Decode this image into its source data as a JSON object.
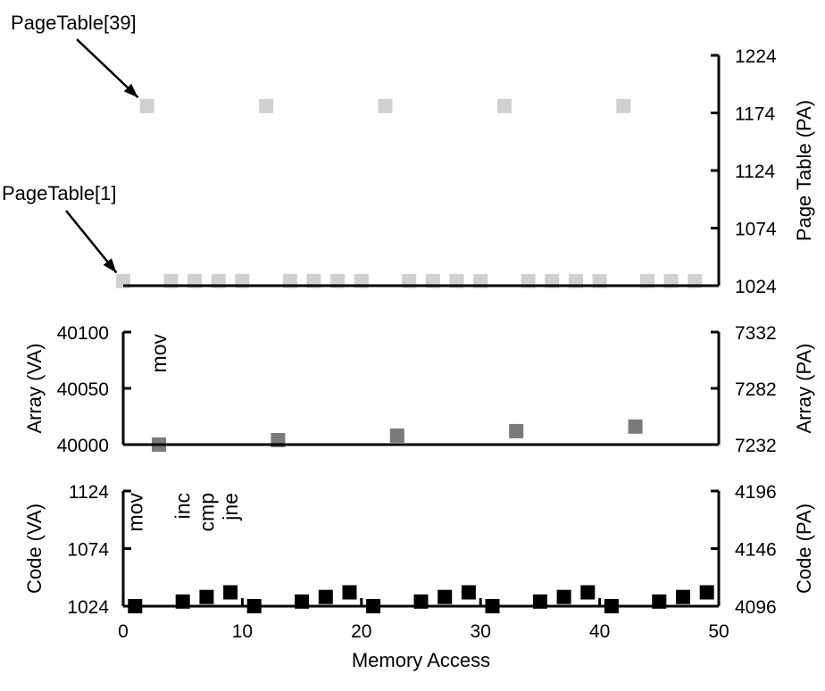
{
  "chart_data": [
    {
      "type": "scatter",
      "panel": "page-table",
      "xlim": [
        0,
        50
      ],
      "right_ylabel": "Page Table (PA)",
      "right_ylim": [
        1024,
        1224
      ],
      "right_ticks": [
        "1024",
        "1074",
        "1124",
        "1174",
        "1224"
      ],
      "marker_color": "#d0d0d0",
      "points": [
        {
          "x": 0,
          "y": 1028
        },
        {
          "x": 2,
          "y": 1180
        },
        {
          "x": 4,
          "y": 1028
        },
        {
          "x": 6,
          "y": 1028
        },
        {
          "x": 8,
          "y": 1028
        },
        {
          "x": 10,
          "y": 1028
        },
        {
          "x": 12,
          "y": 1180
        },
        {
          "x": 14,
          "y": 1028
        },
        {
          "x": 16,
          "y": 1028
        },
        {
          "x": 18,
          "y": 1028
        },
        {
          "x": 20,
          "y": 1028
        },
        {
          "x": 22,
          "y": 1180
        },
        {
          "x": 24,
          "y": 1028
        },
        {
          "x": 26,
          "y": 1028
        },
        {
          "x": 28,
          "y": 1028
        },
        {
          "x": 30,
          "y": 1028
        },
        {
          "x": 32,
          "y": 1180
        },
        {
          "x": 34,
          "y": 1028
        },
        {
          "x": 36,
          "y": 1028
        },
        {
          "x": 38,
          "y": 1028
        },
        {
          "x": 40,
          "y": 1028
        },
        {
          "x": 42,
          "y": 1180
        },
        {
          "x": 44,
          "y": 1028
        },
        {
          "x": 46,
          "y": 1028
        },
        {
          "x": 48,
          "y": 1028
        }
      ],
      "annotations": [
        {
          "text": "PageTable[39]",
          "x": 2,
          "y": 1180
        },
        {
          "text": "PageTable[1]",
          "x": 0,
          "y": 1028
        }
      ]
    },
    {
      "type": "scatter",
      "panel": "array",
      "xlim": [
        0,
        50
      ],
      "left_ylabel": "Array (VA)",
      "left_ylim": [
        40000,
        40100
      ],
      "left_ticks": [
        "40000",
        "40050",
        "40100"
      ],
      "right_ylabel": "Array (PA)",
      "right_ylim": [
        7232,
        7332
      ],
      "right_ticks": [
        "7232",
        "7282",
        "7332"
      ],
      "marker_color": "#7a7a7a",
      "points": [
        {
          "x": 3,
          "y": 40000
        },
        {
          "x": 13,
          "y": 40004
        },
        {
          "x": 23,
          "y": 40008
        },
        {
          "x": 33,
          "y": 40012
        },
        {
          "x": 43,
          "y": 40016
        }
      ],
      "instruction_labels": [
        {
          "text": "mov",
          "x": 3
        }
      ]
    },
    {
      "type": "scatter",
      "panel": "code",
      "xlim": [
        0,
        50
      ],
      "xticks": [
        "0",
        "10",
        "20",
        "30",
        "40",
        "50"
      ],
      "xlabel": "Memory Access",
      "left_ylabel": "Code (VA)",
      "left_ylim": [
        1024,
        1124
      ],
      "left_ticks": [
        "1024",
        "1074",
        "1124"
      ],
      "right_ylabel": "Code (PA)",
      "right_ylim": [
        4096,
        4196
      ],
      "right_ticks": [
        "4096",
        "4146",
        "4196"
      ],
      "marker_color": "#000000",
      "points": [
        {
          "x": 1,
          "y": 1024
        },
        {
          "x": 5,
          "y": 1028
        },
        {
          "x": 7,
          "y": 1032
        },
        {
          "x": 9,
          "y": 1036
        },
        {
          "x": 11,
          "y": 1024
        },
        {
          "x": 15,
          "y": 1028
        },
        {
          "x": 17,
          "y": 1032
        },
        {
          "x": 19,
          "y": 1036
        },
        {
          "x": 21,
          "y": 1024
        },
        {
          "x": 25,
          "y": 1028
        },
        {
          "x": 27,
          "y": 1032
        },
        {
          "x": 29,
          "y": 1036
        },
        {
          "x": 31,
          "y": 1024
        },
        {
          "x": 35,
          "y": 1028
        },
        {
          "x": 37,
          "y": 1032
        },
        {
          "x": 39,
          "y": 1036
        },
        {
          "x": 41,
          "y": 1024
        },
        {
          "x": 45,
          "y": 1028
        },
        {
          "x": 47,
          "y": 1032
        },
        {
          "x": 49,
          "y": 1036
        }
      ],
      "instruction_labels": [
        {
          "text": "mov",
          "x": 1
        },
        {
          "text": "inc",
          "x": 5
        },
        {
          "text": "cmp",
          "x": 7
        },
        {
          "text": "jne",
          "x": 9
        }
      ]
    }
  ]
}
